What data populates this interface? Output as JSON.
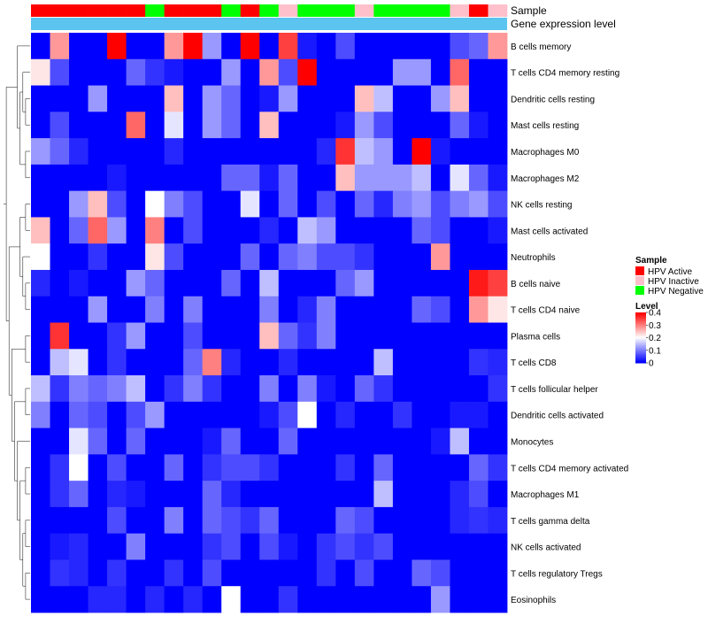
{
  "chart_data": {
    "type": "heatmap",
    "title": "",
    "annotation_tracks": [
      "Sample",
      "Gene expression level"
    ],
    "sample_annotation": [
      "HPV Active",
      "HPV Active",
      "HPV Active",
      "HPV Active",
      "HPV Active",
      "HPV Active",
      "HPV Negative",
      "HPV Active",
      "HPV Active",
      "HPV Active",
      "HPV Negative",
      "HPV Active",
      "HPV Negative",
      "HPV Inactive",
      "HPV Negative",
      "HPV Negative",
      "HPV Negative",
      "HPV Inactive",
      "HPV Negative",
      "HPV Negative",
      "HPV Negative",
      "HPV Negative",
      "HPV Inactive",
      "HPV Active",
      "HPV Inactive"
    ],
    "rows": [
      "B cells memory",
      "T cells CD4 memory resting",
      "Dendritic cells resting",
      "Mast cells resting",
      "Macrophages M0",
      "Macrophages M2",
      "NK cells resting",
      "Mast cells activated",
      "Neutrophils",
      "B cells naive",
      "T cells CD4 naive",
      "Plasma cells",
      "T cells CD8",
      "T cells follicular helper",
      "Dendritic cells activated",
      "Monocytes",
      "T cells CD4 memory activated",
      "Macrophages M1",
      "T cells gamma delta",
      "NK cells activated",
      "T cells regulatory  Tregs",
      "Eosinophils"
    ],
    "values": [
      [
        0.0,
        0.28,
        0.0,
        0.0,
        0.4,
        0.0,
        0.0,
        0.28,
        0.4,
        0.12,
        0.0,
        0.4,
        0.0,
        0.35,
        0.02,
        0.0,
        0.06,
        0.0,
        0.0,
        0.0,
        0.0,
        0.0,
        0.06,
        0.08,
        0.28
      ],
      [
        0.22,
        0.06,
        0.0,
        0.0,
        0.0,
        0.08,
        0.04,
        0.02,
        0.0,
        0.0,
        0.12,
        0.0,
        0.28,
        0.06,
        0.4,
        0.0,
        0.0,
        0.0,
        0.0,
        0.12,
        0.12,
        0.0,
        0.32,
        0.0,
        0.0
      ],
      [
        0.0,
        0.0,
        0.0,
        0.12,
        0.0,
        0.0,
        0.0,
        0.25,
        0.0,
        0.12,
        0.08,
        0.0,
        0.02,
        0.12,
        0.0,
        0.0,
        0.0,
        0.25,
        0.15,
        0.0,
        0.0,
        0.12,
        0.25,
        0.0,
        0.0
      ],
      [
        0.0,
        0.06,
        0.0,
        0.0,
        0.0,
        0.32,
        0.0,
        0.18,
        0.0,
        0.12,
        0.08,
        0.0,
        0.25,
        0.0,
        0.0,
        0.0,
        0.02,
        0.12,
        0.06,
        0.0,
        0.0,
        0.0,
        0.08,
        0.02,
        0.0
      ],
      [
        0.12,
        0.08,
        0.03,
        0.0,
        0.0,
        0.0,
        0.0,
        0.03,
        0.0,
        0.0,
        0.0,
        0.0,
        0.0,
        0.0,
        0.0,
        0.03,
        0.36,
        0.15,
        0.12,
        0.0,
        0.4,
        0.02,
        0.0,
        0.0,
        0.0
      ],
      [
        0.0,
        0.0,
        0.0,
        0.0,
        0.02,
        0.0,
        0.0,
        0.0,
        0.0,
        0.0,
        0.08,
        0.08,
        0.02,
        0.08,
        0.0,
        0.0,
        0.25,
        0.12,
        0.12,
        0.12,
        0.15,
        0.0,
        0.18,
        0.08,
        0.02
      ],
      [
        0.0,
        0.0,
        0.12,
        0.25,
        0.06,
        0.0,
        0.2,
        0.1,
        0.06,
        0.0,
        0.0,
        0.18,
        0.0,
        0.08,
        0.0,
        0.06,
        0.0,
        0.08,
        0.03,
        0.1,
        0.12,
        0.06,
        0.1,
        0.12,
        0.06
      ],
      [
        0.25,
        0.0,
        0.08,
        0.32,
        0.12,
        0.0,
        0.3,
        0.0,
        0.06,
        0.0,
        0.0,
        0.0,
        0.03,
        0.0,
        0.15,
        0.12,
        0.0,
        0.0,
        0.0,
        0.0,
        0.08,
        0.06,
        0.0,
        0.0,
        0.02
      ],
      [
        0.2,
        0.0,
        0.0,
        0.04,
        0.0,
        0.0,
        0.22,
        0.06,
        0.0,
        0.0,
        0.0,
        0.08,
        0.0,
        0.08,
        0.1,
        0.06,
        0.06,
        0.04,
        0.0,
        0.0,
        0.0,
        0.28,
        0.0,
        0.0,
        0.0
      ],
      [
        0.03,
        0.0,
        0.02,
        0.0,
        0.0,
        0.12,
        0.08,
        0.0,
        0.0,
        0.0,
        0.08,
        0.0,
        0.15,
        0.0,
        0.0,
        0.0,
        0.08,
        0.12,
        0.0,
        0.0,
        0.0,
        0.0,
        0.0,
        0.38,
        0.35
      ],
      [
        0.0,
        0.0,
        0.0,
        0.12,
        0.0,
        0.0,
        0.1,
        0.0,
        0.1,
        0.0,
        0.0,
        0.0,
        0.1,
        0.0,
        0.03,
        0.1,
        0.0,
        0.0,
        0.0,
        0.0,
        0.08,
        0.06,
        0.0,
        0.28,
        0.22
      ],
      [
        0.0,
        0.36,
        0.0,
        0.0,
        0.04,
        0.12,
        0.0,
        0.0,
        0.06,
        0.0,
        0.0,
        0.0,
        0.25,
        0.08,
        0.04,
        0.1,
        0.0,
        0.0,
        0.0,
        0.0,
        0.0,
        0.0,
        0.0,
        0.0,
        0.0
      ],
      [
        0.0,
        0.15,
        0.18,
        0.0,
        0.04,
        0.0,
        0.0,
        0.0,
        0.08,
        0.3,
        0.03,
        0.0,
        0.0,
        0.03,
        0.0,
        0.0,
        0.0,
        0.0,
        0.15,
        0.0,
        0.0,
        0.0,
        0.0,
        0.04,
        0.03
      ],
      [
        0.15,
        0.04,
        0.1,
        0.08,
        0.1,
        0.15,
        0.0,
        0.04,
        0.1,
        0.04,
        0.0,
        0.0,
        0.1,
        0.0,
        0.1,
        0.02,
        0.0,
        0.08,
        0.04,
        0.0,
        0.0,
        0.0,
        0.0,
        0.0,
        0.04
      ],
      [
        0.1,
        0.0,
        0.08,
        0.06,
        0.0,
        0.06,
        0.12,
        0.0,
        0.0,
        0.0,
        0.0,
        0.0,
        0.02,
        0.06,
        0.2,
        0.0,
        0.03,
        0.0,
        0.0,
        0.04,
        0.0,
        0.0,
        0.02,
        0.02,
        0.0
      ],
      [
        0.0,
        0.0,
        0.18,
        0.08,
        0.0,
        0.08,
        0.0,
        0.0,
        0.0,
        0.02,
        0.08,
        0.0,
        0.0,
        0.08,
        0.0,
        0.0,
        0.0,
        0.0,
        0.0,
        0.0,
        0.0,
        0.02,
        0.15,
        0.0,
        0.0
      ],
      [
        0.0,
        0.04,
        0.2,
        0.0,
        0.06,
        0.0,
        0.0,
        0.08,
        0.0,
        0.04,
        0.06,
        0.06,
        0.04,
        0.0,
        0.0,
        0.0,
        0.04,
        0.0,
        0.08,
        0.0,
        0.0,
        0.0,
        0.0,
        0.08,
        0.04
      ],
      [
        0.0,
        0.04,
        0.08,
        0.0,
        0.03,
        0.02,
        0.0,
        0.0,
        0.0,
        0.08,
        0.03,
        0.0,
        0.0,
        0.0,
        0.0,
        0.0,
        0.0,
        0.0,
        0.15,
        0.0,
        0.0,
        0.0,
        0.03,
        0.06,
        0.0
      ],
      [
        0.0,
        0.0,
        0.0,
        0.0,
        0.06,
        0.0,
        0.0,
        0.1,
        0.0,
        0.08,
        0.06,
        0.04,
        0.08,
        0.0,
        0.0,
        0.0,
        0.08,
        0.06,
        0.0,
        0.0,
        0.0,
        0.0,
        0.03,
        0.04,
        0.03
      ],
      [
        0.0,
        0.02,
        0.03,
        0.0,
        0.0,
        0.1,
        0.0,
        0.0,
        0.0,
        0.04,
        0.06,
        0.0,
        0.06,
        0.02,
        0.0,
        0.04,
        0.06,
        0.04,
        0.06,
        0.0,
        0.0,
        0.0,
        0.0,
        0.0,
        0.0
      ],
      [
        0.0,
        0.04,
        0.03,
        0.0,
        0.04,
        0.0,
        0.0,
        0.04,
        0.0,
        0.06,
        0.0,
        0.0,
        0.0,
        0.0,
        0.0,
        0.04,
        0.0,
        0.06,
        0.0,
        0.0,
        0.08,
        0.06,
        0.0,
        0.0,
        0.0
      ],
      [
        0.0,
        0.0,
        0.0,
        0.03,
        0.03,
        0.0,
        0.03,
        0.0,
        0.03,
        0.0,
        0.2,
        0.0,
        0.0,
        0.04,
        0.0,
        0.0,
        0.0,
        0.0,
        0.0,
        0.0,
        0.0,
        0.12,
        0.0,
        0.0,
        0.0
      ]
    ],
    "legend": {
      "sample_title": "Sample",
      "sample_entries": [
        {
          "label": "HPV Active",
          "color": "#ff0000"
        },
        {
          "label": "HPV Inactive",
          "color": "#ffc0cb"
        },
        {
          "label": "HPV Negative",
          "color": "#00ff00"
        }
      ],
      "level_title": "Level",
      "level_ticks": [
        "0.4",
        "0.3",
        "0.2",
        "0.1",
        "0"
      ],
      "level_range": [
        0,
        0.4
      ]
    },
    "colors": {
      "low": "#0000ff",
      "mid": "#ffffff",
      "high": "#ff0000",
      "expression_track": "#5bc4ef"
    }
  }
}
